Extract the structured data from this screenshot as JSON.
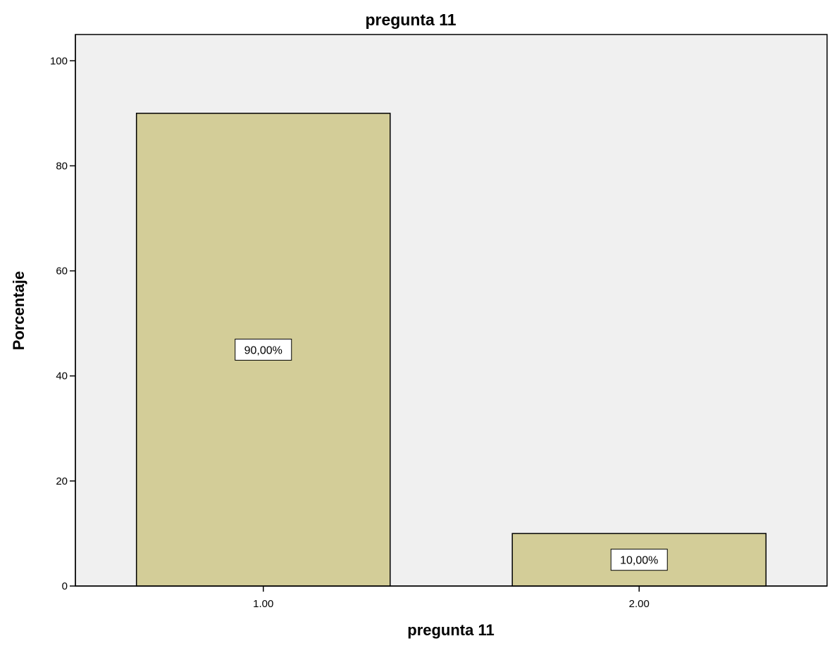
{
  "chart_data": {
    "type": "bar",
    "title": "pregunta 11",
    "xlabel": "pregunta 11",
    "ylabel": "Porcentaje",
    "categories": [
      "1.00",
      "2.00"
    ],
    "values": [
      90,
      10
    ],
    "data_labels": [
      "90,00%",
      "10,00%"
    ],
    "ylim": [
      0,
      105
    ],
    "yticks": [
      0,
      20,
      40,
      60,
      80,
      100
    ],
    "grid": false,
    "colors": {
      "plot_background": "#f0f0f0",
      "bar_fill": "#d3cd98",
      "bar_stroke": "#000000",
      "label_box": "#ffffff"
    }
  }
}
